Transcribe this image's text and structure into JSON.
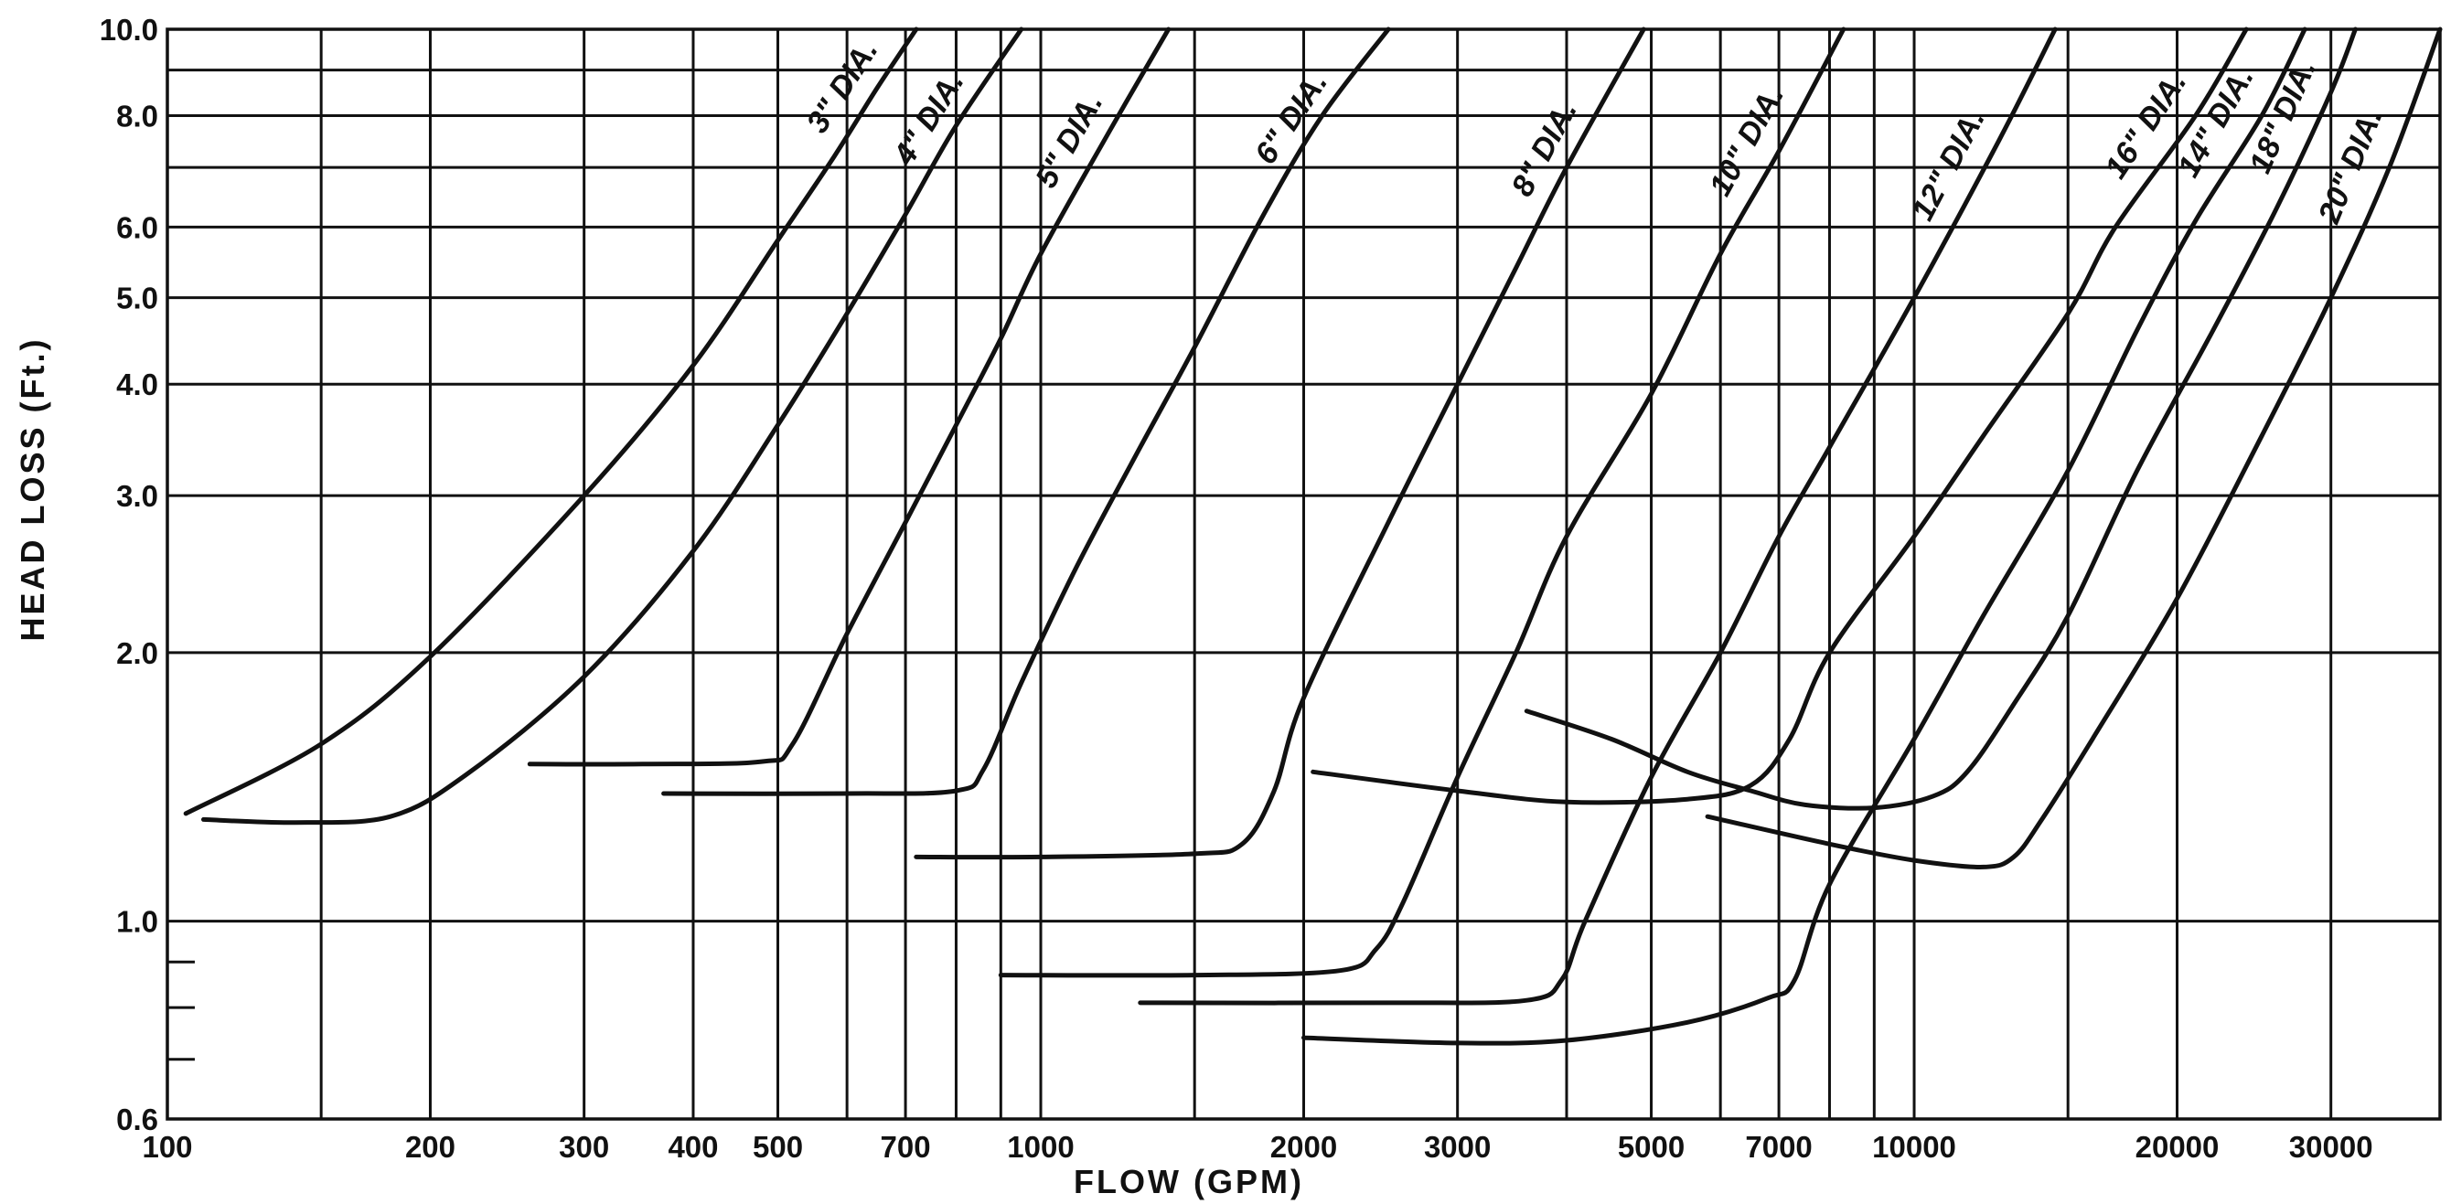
{
  "chart_data": {
    "type": "line",
    "title": "",
    "xlabel": "FLOW (GPM)",
    "ylabel": "HEAD LOSS (Ft.)",
    "x_scale": "log",
    "y_scale": "log",
    "xlim": [
      100,
      40000
    ],
    "ylim": [
      0.6,
      10.0
    ],
    "grid": true,
    "x_tick_labels": [
      "100",
      "200",
      "300",
      "400",
      "500",
      "700",
      "1000",
      "2000",
      "3000",
      "5000",
      "7000",
      "10000",
      "20000",
      "30000"
    ],
    "x_tick_values": [
      100,
      200,
      300,
      400,
      500,
      700,
      1000,
      2000,
      3000,
      5000,
      7000,
      10000,
      20000,
      30000
    ],
    "x_grid_values": [
      100,
      150,
      200,
      300,
      400,
      500,
      600,
      700,
      800,
      900,
      1000,
      1500,
      2000,
      3000,
      4000,
      5000,
      6000,
      7000,
      8000,
      9000,
      10000,
      15000,
      20000,
      30000,
      40000
    ],
    "y_tick_labels": [
      "10.0",
      "8.0",
      "6.0",
      "5.0",
      "4.0",
      "3.0",
      "2.0",
      "1.0",
      "0.6"
    ],
    "y_tick_values": [
      10.0,
      8.0,
      6.0,
      5.0,
      4.0,
      3.0,
      2.0,
      1.0,
      0.6
    ],
    "y_grid_values": [
      10.0,
      9.0,
      8.0,
      7.0,
      6.0,
      5.0,
      4.0,
      3.0,
      2.0,
      1.0,
      0.6
    ],
    "y_minor_ticks": [
      0.9,
      0.8,
      0.7
    ],
    "series": [
      {
        "name": "3\" DIA.",
        "points": [
          [
            105,
            1.32
          ],
          [
            150,
            1.58
          ],
          [
            200,
            1.98
          ],
          [
            300,
            3.0
          ],
          [
            400,
            4.2
          ],
          [
            500,
            5.8
          ],
          [
            580,
            7.2
          ],
          [
            650,
            8.6
          ],
          [
            720,
            10.0
          ]
        ]
      },
      {
        "name": "4\" DIA.",
        "points": [
          [
            110,
            1.3
          ],
          [
            140,
            1.29
          ],
          [
            180,
            1.31
          ],
          [
            220,
            1.46
          ],
          [
            300,
            1.88
          ],
          [
            400,
            2.6
          ],
          [
            500,
            3.6
          ],
          [
            600,
            4.8
          ],
          [
            700,
            6.2
          ],
          [
            800,
            7.8
          ],
          [
            950,
            10.0
          ]
        ]
      },
      {
        "name": "5\" DIA.",
        "points": [
          [
            260,
            1.5
          ],
          [
            350,
            1.5
          ],
          [
            480,
            1.51
          ],
          [
            520,
            1.58
          ],
          [
            600,
            2.1
          ],
          [
            700,
            2.8
          ],
          [
            800,
            3.6
          ],
          [
            900,
            4.5
          ],
          [
            1000,
            5.6
          ],
          [
            1200,
            7.7
          ],
          [
            1400,
            10.0
          ]
        ]
      },
      {
        "name": "6\" DIA.",
        "points": [
          [
            370,
            1.39
          ],
          [
            600,
            1.39
          ],
          [
            800,
            1.4
          ],
          [
            860,
            1.48
          ],
          [
            950,
            1.85
          ],
          [
            1100,
            2.5
          ],
          [
            1300,
            3.4
          ],
          [
            1500,
            4.4
          ],
          [
            1800,
            6.2
          ],
          [
            2100,
            8.0
          ],
          [
            2500,
            10.0
          ]
        ]
      },
      {
        "name": "8\" DIA.",
        "points": [
          [
            720,
            1.18
          ],
          [
            1000,
            1.18
          ],
          [
            1500,
            1.19
          ],
          [
            1700,
            1.22
          ],
          [
            1850,
            1.4
          ],
          [
            2000,
            1.78
          ],
          [
            2500,
            2.8
          ],
          [
            3000,
            4.0
          ],
          [
            3500,
            5.4
          ],
          [
            4000,
            7.0
          ],
          [
            4900,
            10.0
          ]
        ]
      },
      {
        "name": "10\" DIA.",
        "points": [
          [
            900,
            0.87
          ],
          [
            1500,
            0.87
          ],
          [
            2200,
            0.88
          ],
          [
            2420,
            0.93
          ],
          [
            2600,
            1.05
          ],
          [
            3000,
            1.45
          ],
          [
            3500,
            2.0
          ],
          [
            4000,
            2.7
          ],
          [
            5000,
            3.9
          ],
          [
            6000,
            5.6
          ],
          [
            7000,
            7.3
          ],
          [
            8300,
            10.0
          ]
        ]
      },
      {
        "name": "12\" DIA.",
        "points": [
          [
            1300,
            0.81
          ],
          [
            2500,
            0.81
          ],
          [
            3600,
            0.815
          ],
          [
            3950,
            0.86
          ],
          [
            4200,
            1.0
          ],
          [
            5000,
            1.45
          ],
          [
            6000,
            2.0
          ],
          [
            7000,
            2.7
          ],
          [
            8000,
            3.4
          ],
          [
            10000,
            5.0
          ],
          [
            12500,
            7.5
          ],
          [
            14500,
            10.0
          ]
        ]
      },
      {
        "name": "14\" DIA.",
        "points": [
          [
            2000,
            0.74
          ],
          [
            3000,
            0.73
          ],
          [
            4000,
            0.735
          ],
          [
            5500,
            0.77
          ],
          [
            6800,
            0.82
          ],
          [
            7300,
            0.86
          ],
          [
            8000,
            1.1
          ],
          [
            10000,
            1.6
          ],
          [
            12000,
            2.2
          ],
          [
            15000,
            3.2
          ],
          [
            18000,
            4.6
          ],
          [
            21000,
            6.1
          ],
          [
            25000,
            8.0
          ],
          [
            28000,
            10.0
          ]
        ]
      },
      {
        "name": "16\" DIA.",
        "points": [
          [
            2050,
            1.47
          ],
          [
            3000,
            1.4
          ],
          [
            4000,
            1.36
          ],
          [
            5500,
            1.37
          ],
          [
            6500,
            1.42
          ],
          [
            7200,
            1.6
          ],
          [
            8000,
            2.0
          ],
          [
            10000,
            2.7
          ],
          [
            12000,
            3.5
          ],
          [
            15000,
            4.8
          ],
          [
            17000,
            6.0
          ],
          [
            21000,
            8.0
          ],
          [
            24000,
            10.0
          ]
        ]
      },
      {
        "name": "18\" DIA.",
        "points": [
          [
            3600,
            1.72
          ],
          [
            4500,
            1.6
          ],
          [
            5500,
            1.47
          ],
          [
            6500,
            1.4
          ],
          [
            7500,
            1.35
          ],
          [
            9000,
            1.34
          ],
          [
            10500,
            1.38
          ],
          [
            11500,
            1.47
          ],
          [
            13000,
            1.75
          ],
          [
            15000,
            2.2
          ],
          [
            18000,
            3.2
          ],
          [
            22000,
            4.6
          ],
          [
            26000,
            6.3
          ],
          [
            30000,
            8.5
          ],
          [
            32000,
            10.0
          ]
        ]
      },
      {
        "name": "20\" DIA.",
        "points": [
          [
            5800,
            1.31
          ],
          [
            8000,
            1.22
          ],
          [
            10000,
            1.17
          ],
          [
            12000,
            1.15
          ],
          [
            13000,
            1.18
          ],
          [
            14000,
            1.3
          ],
          [
            16000,
            1.6
          ],
          [
            20000,
            2.3
          ],
          [
            25000,
            3.5
          ],
          [
            30000,
            5.0
          ],
          [
            35000,
            7.0
          ],
          [
            40000,
            10.0
          ]
        ]
      }
    ]
  }
}
